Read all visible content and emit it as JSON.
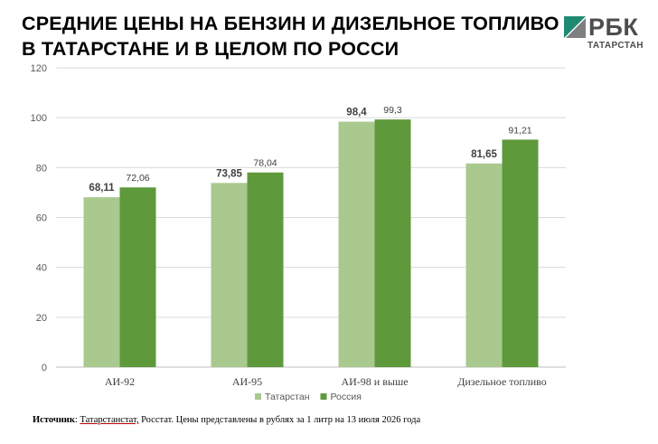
{
  "header": {
    "title_line1": "СРЕДНИЕ ЦЕНЫ НА БЕНЗИН И ДИЗЕЛЬНОЕ ТОПЛИВО",
    "title_line2": "В ТАТАРСТАНЕ И В ЦЕЛОМ ПО РОССИ"
  },
  "logo": {
    "wordmark": "РБК",
    "subtitle": "ТАТАРСТАН",
    "mark_color": "#1f8a72"
  },
  "chart_data": {
    "type": "bar",
    "categories": [
      "АИ-92",
      "АИ-95",
      "АИ-98 и выше",
      "Дизельное топливо"
    ],
    "series": [
      {
        "name": "Татарстан",
        "values": [
          68.11,
          73.85,
          98.4,
          81.65
        ],
        "labels": [
          "68,11",
          "73,85",
          "98,4",
          "81,65"
        ],
        "color": "#a9c98f"
      },
      {
        "name": "Россия",
        "values": [
          72.06,
          78.04,
          99.3,
          91.21
        ],
        "labels": [
          "72,06",
          "78,04",
          "99,3",
          "91,21"
        ],
        "color": "#5e9a3c"
      }
    ],
    "ylim": [
      0,
      120
    ],
    "yticks": [
      0,
      20,
      40,
      60,
      80,
      100,
      120
    ],
    "ytick_labels": [
      "0",
      "20",
      "40",
      "60",
      "80",
      "100",
      "120"
    ],
    "grid": true,
    "legend_position": "bottom"
  },
  "source": {
    "label": "Источник",
    "sep": ": ",
    "link": "Татарстанстат,",
    "rest": " Росстат. Цены представлены в рублях за 1 литр на 13 июля 2026 года"
  }
}
